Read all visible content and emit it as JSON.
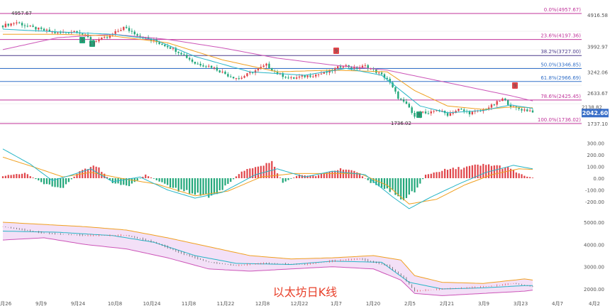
{
  "watermark": "以太坊日K线",
  "current_price": "2042.60",
  "colors": {
    "up": "#e0454a",
    "down": "#22a77a",
    "fib_magenta": "#c0339a",
    "fib_navy": "#4a3a8c",
    "fib_blue": "#3370c8",
    "ma_fast": "#26b5c6",
    "ma_slow": "#f0a020",
    "ma_long": "#cc55b8",
    "band_fill": "#f3e0f7",
    "price_tag": "#3a6fc8"
  },
  "chart_data": [
    {
      "type": "candlestick",
      "x_tick_labels": [
        "8月26",
        "9月9",
        "9月24",
        "10月8",
        "10月24",
        "11月8",
        "11月22",
        "12月8",
        "12月22",
        "1月7",
        "1月20",
        "2月5",
        "2月21",
        "3月9",
        "3月23",
        "4月7",
        "4月2"
      ],
      "y_ticks": [
        4916.58,
        3992.97,
        3242.06,
        2633.67,
        1737.1
      ],
      "extra_axis_labels": [
        "2138.82",
        "1737.10"
      ],
      "annotations": [
        "4957.67",
        "1736.02"
      ],
      "td_markers": [
        "9",
        "13",
        "9",
        "9",
        "9"
      ],
      "fib_levels": [
        {
          "label": "0.0%(4957.67)",
          "value": 4957.67
        },
        {
          "label": "23.6%(4197.36)",
          "value": 4197.36
        },
        {
          "label": "38.2%(3727.00)",
          "value": 3727.0
        },
        {
          "label": "50.0%(3346.85)",
          "value": 3346.85
        },
        {
          "label": "61.8%(2966.69)",
          "value": 2966.69
        },
        {
          "label": "78.6%(2425.45)",
          "value": 2425.45
        },
        {
          "label": "100.0%(1736.02)",
          "value": 1736.02
        }
      ],
      "close_path": [
        [
          0,
          4600
        ],
        [
          5,
          4700
        ],
        [
          9,
          4580
        ],
        [
          14,
          4480
        ],
        [
          20,
          4380
        ],
        [
          27,
          4450
        ],
        [
          33,
          4150
        ],
        [
          38,
          4250
        ],
        [
          44,
          4550
        ],
        [
          50,
          4300
        ],
        [
          55,
          4150
        ],
        [
          60,
          4000
        ],
        [
          65,
          3800
        ],
        [
          70,
          3500
        ],
        [
          76,
          3400
        ],
        [
          82,
          3150
        ],
        [
          86,
          3050
        ],
        [
          91,
          3250
        ],
        [
          96,
          3450
        ],
        [
          100,
          3200
        ],
        [
          105,
          3050
        ],
        [
          110,
          3120
        ],
        [
          115,
          3180
        ],
        [
          119,
          3250
        ],
        [
          124,
          3450
        ],
        [
          128,
          3350
        ],
        [
          132,
          3420
        ],
        [
          136,
          3250
        ],
        [
          140,
          3050
        ],
        [
          144,
          2500
        ],
        [
          148,
          2200
        ],
        [
          150,
          1900
        ],
        [
          152,
          2100
        ],
        [
          155,
          2000
        ],
        [
          158,
          2150
        ],
        [
          162,
          2000
        ],
        [
          166,
          2150
        ],
        [
          170,
          2050
        ],
        [
          174,
          2100
        ],
        [
          178,
          2250
        ],
        [
          182,
          2450
        ],
        [
          186,
          2200
        ],
        [
          189,
          2150
        ],
        [
          193,
          2100
        ]
      ],
      "ma_fast": [
        [
          0,
          4500
        ],
        [
          20,
          4420
        ],
        [
          40,
          4350
        ],
        [
          55,
          4200
        ],
        [
          70,
          3700
        ],
        [
          90,
          3250
        ],
        [
          110,
          3150
        ],
        [
          125,
          3350
        ],
        [
          138,
          3150
        ],
        [
          145,
          2700
        ],
        [
          152,
          2250
        ],
        [
          162,
          2050
        ],
        [
          175,
          2120
        ],
        [
          185,
          2280
        ],
        [
          193,
          2180
        ]
      ],
      "ma_slow": [
        [
          0,
          4350
        ],
        [
          20,
          4350
        ],
        [
          40,
          4300
        ],
        [
          60,
          4100
        ],
        [
          80,
          3600
        ],
        [
          100,
          3250
        ],
        [
          120,
          3300
        ],
        [
          140,
          3250
        ],
        [
          150,
          2700
        ],
        [
          162,
          2250
        ],
        [
          175,
          2150
        ],
        [
          185,
          2220
        ],
        [
          193,
          2200
        ]
      ],
      "ma_long": [
        [
          0,
          3900
        ],
        [
          20,
          4250
        ],
        [
          40,
          4350
        ],
        [
          60,
          4200
        ],
        [
          80,
          3950
        ],
        [
          100,
          3650
        ],
        [
          120,
          3450
        ],
        [
          140,
          3300
        ],
        [
          155,
          3050
        ],
        [
          170,
          2800
        ],
        [
          185,
          2550
        ],
        [
          193,
          2400
        ]
      ]
    },
    {
      "type": "macd",
      "y_ticks": [
        300.0,
        200.0,
        100.0,
        0.0,
        -100.0,
        -200.0
      ],
      "histogram_path": [
        [
          0,
          20
        ],
        [
          8,
          45
        ],
        [
          16,
          -60
        ],
        [
          22,
          -80
        ],
        [
          28,
          60
        ],
        [
          34,
          110
        ],
        [
          40,
          -40
        ],
        [
          46,
          -70
        ],
        [
          52,
          30
        ],
        [
          58,
          -40
        ],
        [
          64,
          -110
        ],
        [
          70,
          -130
        ],
        [
          76,
          -160
        ],
        [
          82,
          -60
        ],
        [
          86,
          40
        ],
        [
          92,
          110
        ],
        [
          98,
          140
        ],
        [
          102,
          -40
        ],
        [
          108,
          30
        ],
        [
          114,
          20
        ],
        [
          118,
          50
        ],
        [
          124,
          90
        ],
        [
          130,
          40
        ],
        [
          134,
          -40
        ],
        [
          138,
          -80
        ],
        [
          142,
          -120
        ],
        [
          146,
          -180
        ],
        [
          150,
          -120
        ],
        [
          154,
          30
        ],
        [
          160,
          70
        ],
        [
          166,
          90
        ],
        [
          172,
          110
        ],
        [
          178,
          120
        ],
        [
          184,
          90
        ],
        [
          190,
          20
        ],
        [
          193,
          5
        ]
      ],
      "dif": [
        [
          0,
          250
        ],
        [
          10,
          120
        ],
        [
          18,
          -20
        ],
        [
          24,
          20
        ],
        [
          32,
          80
        ],
        [
          40,
          -30
        ],
        [
          50,
          10
        ],
        [
          60,
          -100
        ],
        [
          70,
          -170
        ],
        [
          80,
          -120
        ],
        [
          92,
          30
        ],
        [
          100,
          80
        ],
        [
          110,
          10
        ],
        [
          120,
          60
        ],
        [
          132,
          30
        ],
        [
          142,
          -160
        ],
        [
          148,
          -260
        ],
        [
          156,
          -160
        ],
        [
          166,
          -50
        ],
        [
          176,
          50
        ],
        [
          186,
          110
        ],
        [
          193,
          80
        ]
      ],
      "dea": [
        [
          0,
          180
        ],
        [
          12,
          90
        ],
        [
          22,
          10
        ],
        [
          32,
          50
        ],
        [
          44,
          -5
        ],
        [
          56,
          -50
        ],
        [
          70,
          -150
        ],
        [
          82,
          -110
        ],
        [
          94,
          10
        ],
        [
          106,
          40
        ],
        [
          118,
          40
        ],
        [
          130,
          40
        ],
        [
          140,
          -60
        ],
        [
          148,
          -220
        ],
        [
          158,
          -180
        ],
        [
          168,
          -60
        ],
        [
          178,
          30
        ],
        [
          188,
          80
        ],
        [
          193,
          75
        ]
      ]
    },
    {
      "type": "bollinger",
      "y_ticks": [
        5000.0,
        4000.0,
        3000.0,
        2000.0
      ],
      "upper": [
        [
          0,
          5000
        ],
        [
          15,
          4900
        ],
        [
          30,
          4800
        ],
        [
          45,
          4650
        ],
        [
          60,
          4300
        ],
        [
          75,
          3900
        ],
        [
          90,
          3500
        ],
        [
          105,
          3350
        ],
        [
          120,
          3400
        ],
        [
          135,
          3500
        ],
        [
          145,
          3300
        ],
        [
          150,
          2600
        ],
        [
          160,
          2300
        ],
        [
          175,
          2250
        ],
        [
          190,
          2450
        ],
        [
          193,
          2400
        ]
      ],
      "lower": [
        [
          0,
          4200
        ],
        [
          15,
          4300
        ],
        [
          30,
          4000
        ],
        [
          45,
          3800
        ],
        [
          60,
          3400
        ],
        [
          75,
          2900
        ],
        [
          90,
          2800
        ],
        [
          105,
          2900
        ],
        [
          120,
          3000
        ],
        [
          135,
          2900
        ],
        [
          145,
          2400
        ],
        [
          150,
          1800
        ],
        [
          160,
          1700
        ],
        [
          175,
          1800
        ],
        [
          190,
          1900
        ],
        [
          193,
          1950
        ]
      ],
      "mid": [
        [
          0,
          4600
        ],
        [
          20,
          4550
        ],
        [
          40,
          4400
        ],
        [
          55,
          4100
        ],
        [
          70,
          3500
        ],
        [
          85,
          3150
        ],
        [
          105,
          3100
        ],
        [
          120,
          3250
        ],
        [
          138,
          3200
        ],
        [
          148,
          2300
        ],
        [
          160,
          2000
        ],
        [
          175,
          2050
        ],
        [
          190,
          2150
        ],
        [
          193,
          2150
        ]
      ],
      "price": [
        [
          0,
          4800
        ],
        [
          15,
          4500
        ],
        [
          30,
          4400
        ],
        [
          45,
          4400
        ],
        [
          55,
          4100
        ],
        [
          65,
          3600
        ],
        [
          75,
          3200
        ],
        [
          85,
          3050
        ],
        [
          95,
          3150
        ],
        [
          110,
          3100
        ],
        [
          120,
          3250
        ],
        [
          130,
          3350
        ],
        [
          140,
          3050
        ],
        [
          146,
          2500
        ],
        [
          150,
          1900
        ],
        [
          160,
          2000
        ],
        [
          170,
          2050
        ],
        [
          180,
          2150
        ],
        [
          186,
          2250
        ],
        [
          193,
          2100
        ]
      ]
    }
  ]
}
